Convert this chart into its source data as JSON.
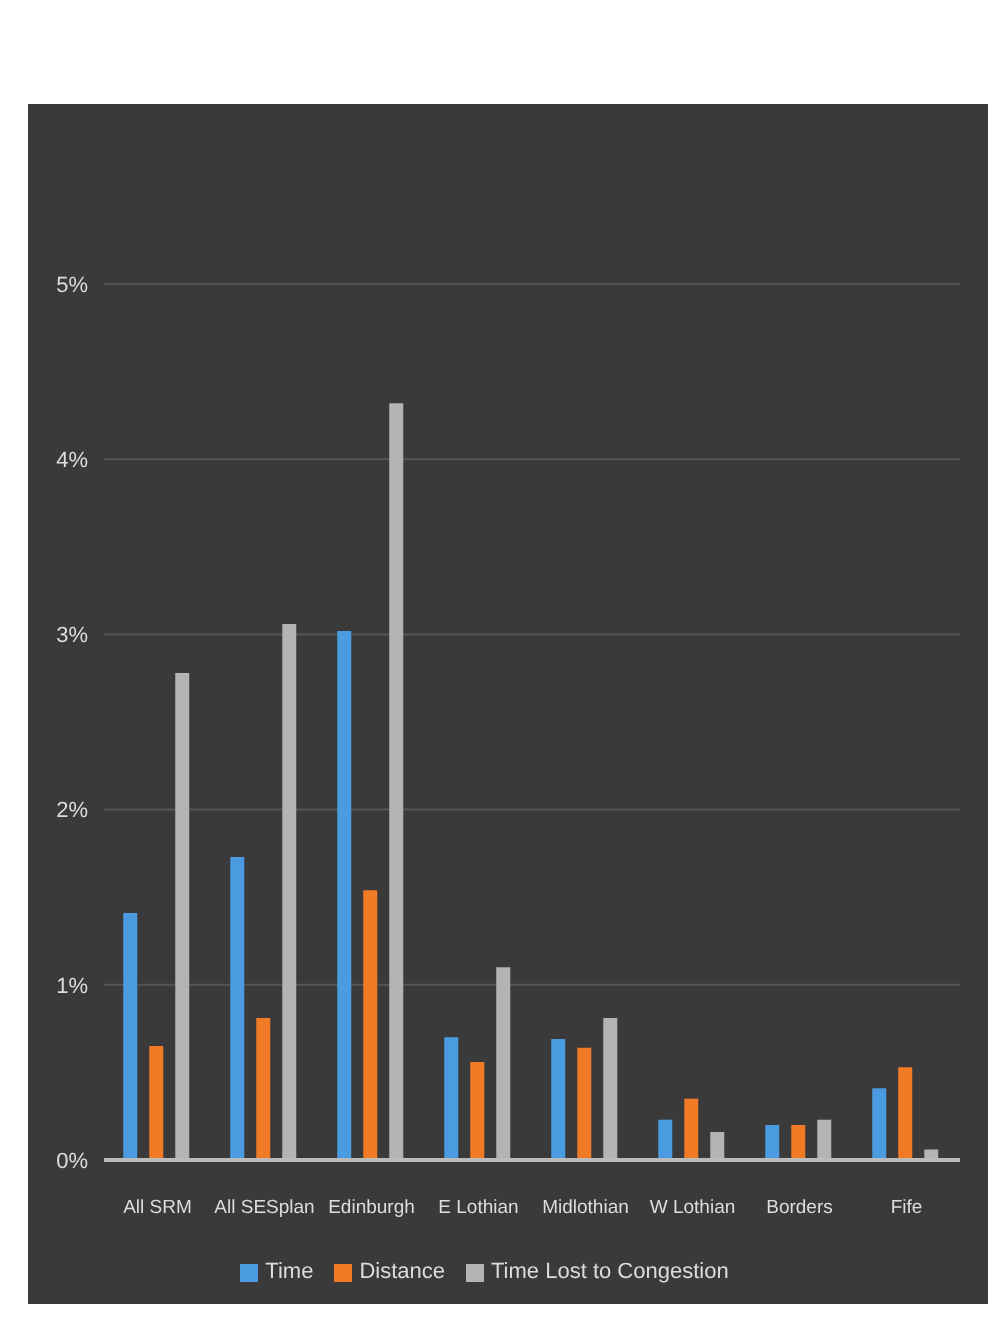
{
  "chart_data": {
    "type": "bar",
    "categories": [
      "All SRM",
      "All SESplan",
      "Edinburgh",
      "E Lothian",
      "Midlothian",
      "W Lothian",
      "Borders",
      "Fife"
    ],
    "series": [
      {
        "name": "Time",
        "color": "#4a9be0",
        "values": [
          1.41,
          1.73,
          3.02,
          0.7,
          0.69,
          0.23,
          0.2,
          0.41
        ]
      },
      {
        "name": "Distance",
        "color": "#f07a26",
        "values": [
          0.65,
          0.81,
          1.54,
          0.56,
          0.64,
          0.35,
          0.2,
          0.53
        ]
      },
      {
        "name": "Time Lost to Congestion",
        "color": "#b4b4b4",
        "values": [
          2.78,
          3.06,
          4.32,
          1.1,
          0.81,
          0.16,
          0.23,
          0.06
        ]
      }
    ],
    "ylim": [
      0,
      5
    ],
    "yticks": [
      {
        "value": 0,
        "label": "0%"
      },
      {
        "value": 1,
        "label": "1%"
      },
      {
        "value": 2,
        "label": "2%"
      },
      {
        "value": 3,
        "label": "3%"
      },
      {
        "value": 4,
        "label": "4%"
      },
      {
        "value": 5,
        "label": "5%"
      }
    ],
    "grid": "y",
    "legend": "bottom"
  }
}
